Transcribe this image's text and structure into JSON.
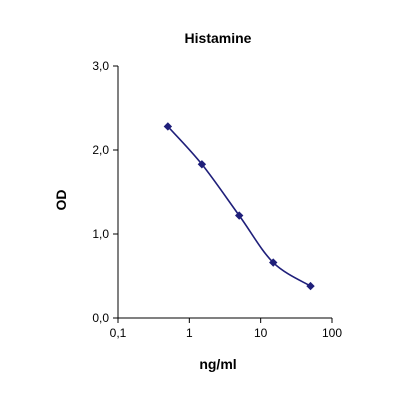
{
  "chart_data": {
    "type": "line",
    "title": "Histamine",
    "xlabel": "ng/ml",
    "ylabel": "OD",
    "x_scale": "log",
    "xlim": [
      0.1,
      100
    ],
    "ylim": [
      0.0,
      3.0
    ],
    "x_ticks": [
      0.1,
      1,
      10,
      100
    ],
    "x_tick_labels": [
      "0,1",
      "1",
      "10",
      "100"
    ],
    "y_ticks": [
      0.0,
      1.0,
      2.0,
      3.0
    ],
    "y_tick_labels": [
      "0,0",
      "1,0",
      "2,0",
      "3,0"
    ],
    "grid": false,
    "legend": "none",
    "series": [
      {
        "x": [
          0.5,
          1.5,
          5,
          15,
          50
        ],
        "y": [
          2.28,
          1.83,
          1.22,
          0.66,
          0.38
        ],
        "color": "#1f1f7a",
        "marker": "diamond",
        "smooth": true
      }
    ]
  }
}
